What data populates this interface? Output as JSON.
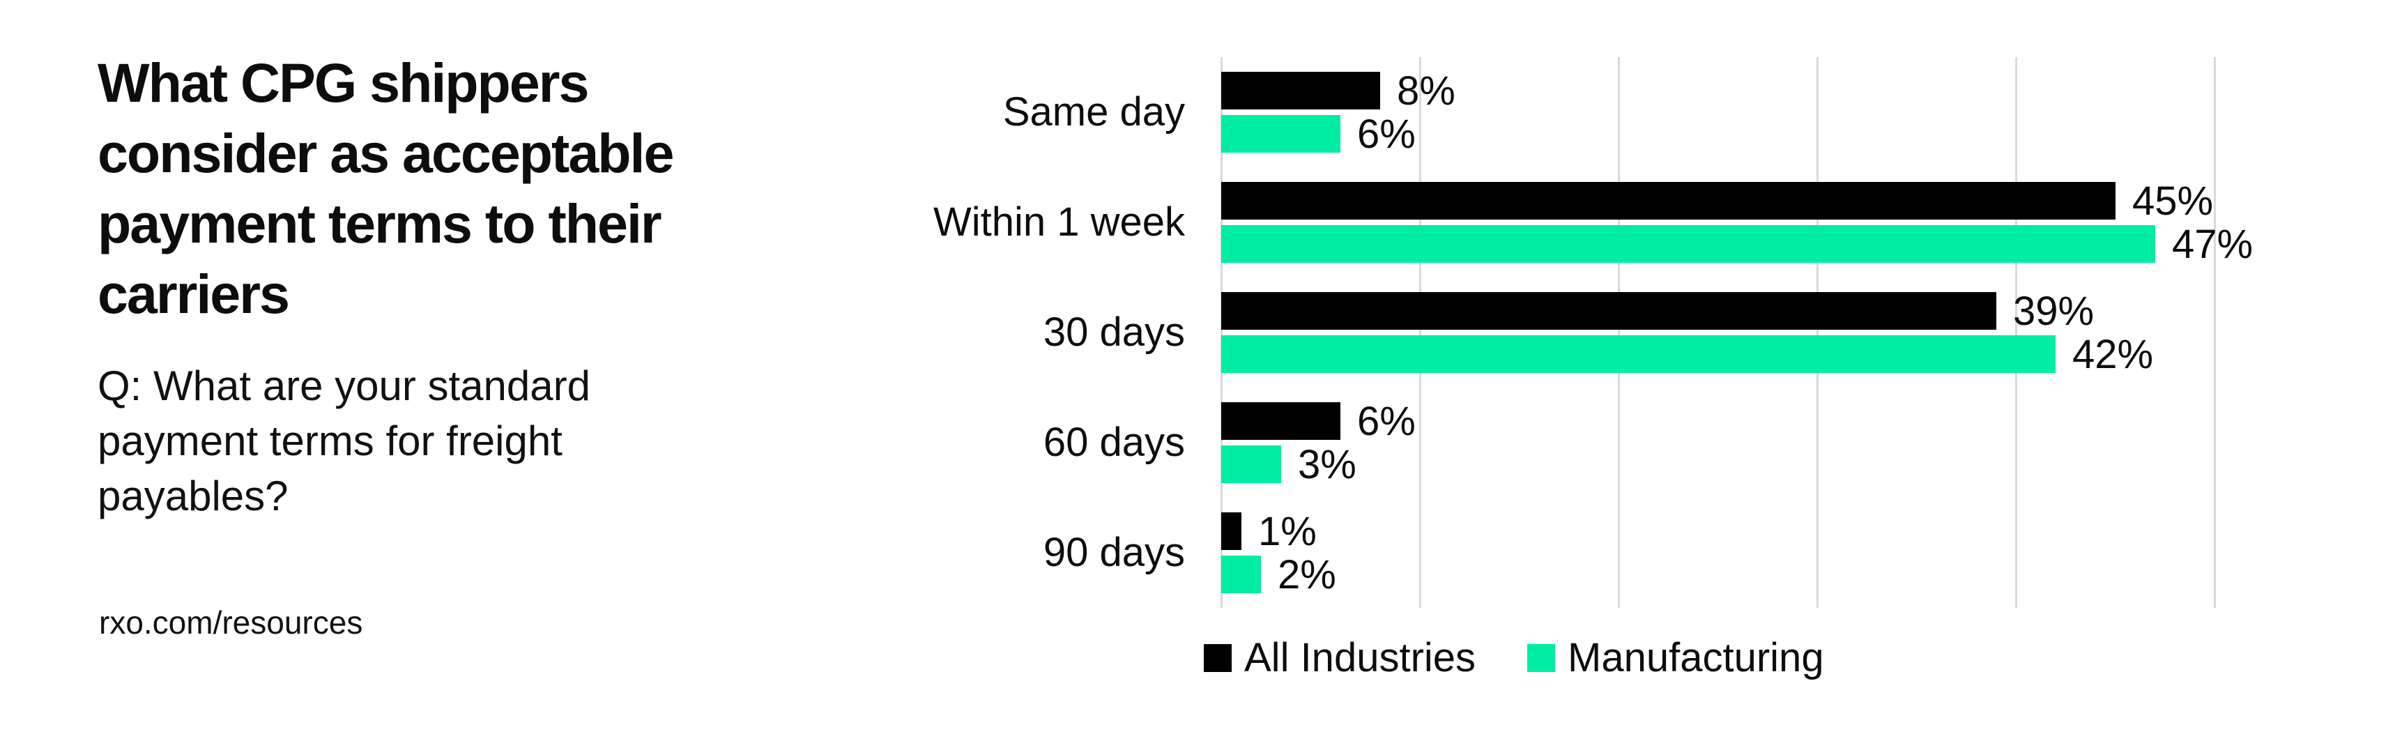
{
  "page": {
    "background": "#ffffff",
    "text_color": "#0d0d0d"
  },
  "left": {
    "title_lines": [
      "What CPG shippers",
      "consider as acceptable",
      "payment terms to their",
      "carriers"
    ],
    "subtitle_lines": [
      "Q: What are your standard",
      "payment terms for freight",
      "payables?"
    ],
    "footer_link": "rxo.com/resources"
  },
  "chart_data": {
    "type": "bar",
    "orientation": "horizontal",
    "title": "",
    "xlabel": "",
    "ylabel": "",
    "categories": [
      "Same day",
      "Within 1 week",
      "30 days",
      "60 days",
      "90 days"
    ],
    "series": [
      {
        "name": "All Industries",
        "color": "#000000",
        "values": [
          8,
          45,
          39,
          6,
          1
        ]
      },
      {
        "name": "Manufacturing",
        "color": "#00eda4",
        "values": [
          6,
          47,
          42,
          3,
          2
        ]
      }
    ],
    "value_suffix": "%",
    "xlim": [
      0,
      50
    ],
    "gridline_step_pct": 10,
    "grid": true,
    "grid_color": "#d9d9d9",
    "legend_position": "bottom"
  }
}
